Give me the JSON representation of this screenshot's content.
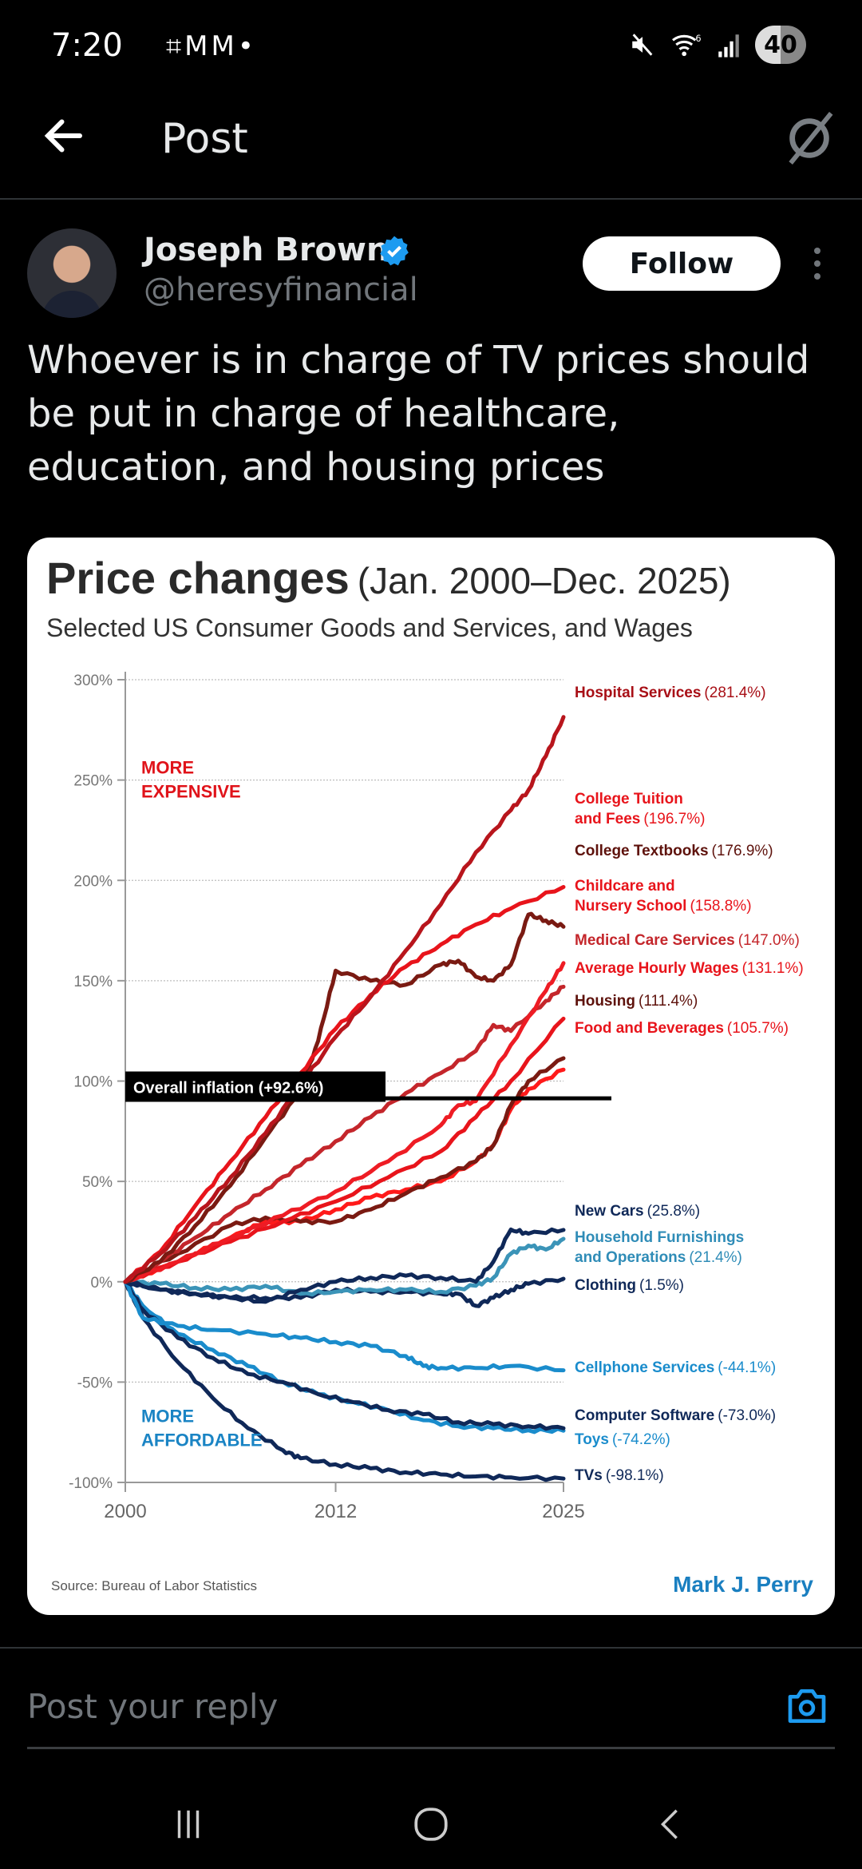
{
  "status_bar": {
    "time": "7:20",
    "left_icons": [
      "screenshot-icon",
      "gmail-icon",
      "gmail-icon",
      "dot-icon"
    ],
    "right_icons": [
      "mute-icon",
      "wifi-6-icon",
      "signal-icon"
    ],
    "battery": "40"
  },
  "header": {
    "title": "Post",
    "back_icon": "arrow-left-icon",
    "right_icon": "grok-icon"
  },
  "post": {
    "author_name": "Joseph Brown",
    "verified": true,
    "handle": "@heresyfinancial",
    "follow_label": "Follow",
    "text": "Whoever is in charge of TV prices should be put in charge of healthcare, education, and housing prices"
  },
  "chart_data": {
    "type": "line",
    "title": "Price changes",
    "title_range": "(Jan. 2000–Dec. 2025)",
    "subtitle": "Selected US Consumer Goods and Services, and Wages",
    "xlabel": "",
    "ylabel": "",
    "x_ticks": [
      "2000",
      "2012",
      "2025"
    ],
    "x_range": [
      2000,
      2025
    ],
    "y_ticks": [
      "300%",
      "250%",
      "200%",
      "150%",
      "100%",
      "50%",
      "0%",
      "-50%",
      "-100%"
    ],
    "y_range": [
      -100,
      300
    ],
    "grid": true,
    "annotations": {
      "more_expensive": [
        "MORE",
        "EXPENSIVE"
      ],
      "more_affordable": [
        "MORE",
        "AFFORDABLE"
      ],
      "overall_inflation": "Overall inflation (+92.6%)",
      "overall_inflation_value": 92.6
    },
    "source": "Source:  Bureau of Labor Statistics",
    "credit": "Mark J. Perry",
    "colors": {
      "red": "#e8141b",
      "dark_red": "#7a1a12",
      "mid_red": "#c4262b",
      "navy": "#0f2858",
      "light_blue": "#1a8ccc",
      "teal_blue": "#3b94b8"
    },
    "series": [
      {
        "name": "Hospital Services",
        "label_value": "(281.4%)",
        "final": 281.4,
        "color": "#b8151c",
        "label_color": "#a80f16",
        "x": [
          2000,
          2002,
          2004,
          2006,
          2008,
          2010,
          2012,
          2014,
          2016,
          2018,
          2020,
          2022,
          2023,
          2024,
          2025
        ],
        "y": [
          0,
          14,
          32,
          52,
          74,
          98,
          122,
          142,
          165,
          188,
          214,
          235,
          245,
          262,
          281.4
        ]
      },
      {
        "name": "College Tuition and Fees",
        "label_value": "(196.7%)",
        "final": 196.7,
        "color": "#e8141b",
        "label_color": "#e8141b",
        "x": [
          2000,
          2002,
          2004,
          2006,
          2008,
          2010,
          2012,
          2014,
          2016,
          2018,
          2020,
          2022,
          2025
        ],
        "y": [
          0,
          15,
          38,
          60,
          82,
          104,
          126,
          143,
          157,
          168,
          178,
          186,
          196.7
        ]
      },
      {
        "name": "College Textbooks",
        "label_value": "(176.9%)",
        "final": 176.9,
        "color": "#7a1a12",
        "label_color": "#5e120c",
        "x": [
          2000,
          2002,
          2004,
          2006,
          2008,
          2010,
          2011,
          2012,
          2014,
          2016,
          2018,
          2019,
          2020,
          2021,
          2022,
          2023,
          2024,
          2025
        ],
        "y": [
          0,
          10,
          28,
          48,
          72,
          95,
          120,
          155,
          150,
          148,
          158,
          160,
          152,
          150,
          158,
          183,
          180,
          176.9
        ]
      },
      {
        "name": "Childcare and Nursery School",
        "label_value": "(158.8%)",
        "final": 158.8,
        "color": "#ee1c24",
        "label_color": "#e8141b",
        "x": [
          2000,
          2003,
          2006,
          2009,
          2012,
          2015,
          2018,
          2019,
          2020,
          2022,
          2024,
          2025
        ],
        "y": [
          0,
          10,
          22,
          33,
          45,
          60,
          78,
          88,
          90,
          118,
          145,
          158.8
        ]
      },
      {
        "name": "Medical Care Services",
        "label_value": "(147.0%)",
        "final": 147.0,
        "color": "#c4262b",
        "label_color": "#c4262b",
        "x": [
          2000,
          2002,
          2004,
          2006,
          2008,
          2010,
          2012,
          2014,
          2016,
          2018,
          2020,
          2021,
          2022,
          2024,
          2025
        ],
        "y": [
          0,
          10,
          22,
          34,
          46,
          58,
          70,
          82,
          94,
          104,
          115,
          128,
          125,
          140,
          147.0
        ]
      },
      {
        "name": "Average Hourly Wages",
        "label_value": "(131.1%)",
        "final": 131.1,
        "color": "#e8141b",
        "label_color": "#e8141b",
        "x": [
          2000,
          2003,
          2006,
          2009,
          2012,
          2015,
          2018,
          2020,
          2022,
          2025
        ],
        "y": [
          0,
          10,
          20,
          30,
          40,
          52,
          65,
          82,
          100,
          131.1
        ]
      },
      {
        "name": "Housing",
        "label_value": "(111.4%)",
        "final": 111.4,
        "color": "#7a1a12",
        "label_color": "#5e120c",
        "x": [
          2000,
          2003,
          2006,
          2008,
          2010,
          2012,
          2014,
          2016,
          2018,
          2020,
          2021,
          2022,
          2023,
          2025
        ],
        "y": [
          0,
          14,
          28,
          32,
          30,
          30,
          36,
          44,
          52,
          60,
          68,
          88,
          100,
          111.4
        ]
      },
      {
        "name": "Food and Beverages",
        "label_value": "(105.7%)",
        "final": 105.7,
        "color": "#ff1a1a",
        "label_color": "#e8141b",
        "x": [
          2000,
          2003,
          2006,
          2008,
          2010,
          2012,
          2014,
          2016,
          2018,
          2020,
          2021,
          2022,
          2023,
          2025
        ],
        "y": [
          0,
          10,
          22,
          30,
          30,
          36,
          42,
          46,
          50,
          60,
          68,
          86,
          96,
          105.7
        ]
      },
      {
        "name": "New Cars",
        "label_value": "(25.8%)",
        "final": 25.8,
        "color": "#0f2858",
        "label_color": "#0f2858",
        "x": [
          2000,
          2002,
          2004,
          2006,
          2008,
          2010,
          2012,
          2014,
          2016,
          2018,
          2020,
          2021,
          2022,
          2023,
          2025
        ],
        "y": [
          0,
          -4,
          -6,
          -8,
          -10,
          -4,
          0,
          2,
          3,
          2,
          0,
          10,
          26,
          24,
          25.8
        ]
      },
      {
        "name": "Household Furnishings and Operations",
        "label_value": "(21.4%)",
        "final": 21.4,
        "color": "#3b94b8",
        "label_color": "#2f8cb7",
        "x": [
          2000,
          2002,
          2004,
          2006,
          2008,
          2010,
          2012,
          2014,
          2016,
          2018,
          2020,
          2021,
          2022,
          2023,
          2024,
          2025
        ],
        "y": [
          0,
          -1,
          -3,
          -4,
          -2,
          -6,
          -5,
          -4,
          -4,
          -5,
          -2,
          2,
          14,
          18,
          16,
          21.4
        ]
      },
      {
        "name": "Clothing",
        "label_value": "(1.5%)",
        "final": 1.5,
        "color": "#0f2858",
        "label_color": "#0f2858",
        "x": [
          2000,
          2002,
          2004,
          2006,
          2008,
          2010,
          2012,
          2014,
          2016,
          2018,
          2019,
          2020,
          2021,
          2022,
          2023,
          2025
        ],
        "y": [
          0,
          -4,
          -6,
          -8,
          -8,
          -8,
          -4,
          -5,
          -5,
          -6,
          -6,
          -12,
          -8,
          -4,
          -1,
          1.5
        ]
      },
      {
        "name": "Cellphone Services",
        "label_value": "(-44.1%)",
        "final": -44.1,
        "color": "#1a8ccc",
        "label_color": "#1a8ccc",
        "x": [
          2000,
          2001,
          2003,
          2005,
          2008,
          2010,
          2012,
          2014,
          2016,
          2017,
          2018,
          2020,
          2022,
          2025
        ],
        "y": [
          0,
          -18,
          -22,
          -24,
          -26,
          -28,
          -30,
          -32,
          -37,
          -42,
          -43,
          -43,
          -42,
          -44.1
        ]
      },
      {
        "name": "Computer Software",
        "label_value": "(-73.0%)",
        "final": -73.0,
        "color": "#0f2858",
        "label_color": "#0f2858",
        "x": [
          2000,
          2001,
          2003,
          2005,
          2007,
          2009,
          2011,
          2013,
          2015,
          2017,
          2019,
          2021,
          2023,
          2025
        ],
        "y": [
          0,
          -14,
          -28,
          -38,
          -46,
          -50,
          -56,
          -60,
          -64,
          -66,
          -70,
          -71,
          -72,
          -73.0
        ]
      },
      {
        "name": "Toys",
        "label_value": "(-74.2%)",
        "final": -74.2,
        "color": "#1a8ccc",
        "label_color": "#1a8ccc",
        "x": [
          2000,
          2001,
          2003,
          2005,
          2007,
          2009,
          2011,
          2013,
          2015,
          2017,
          2019,
          2021,
          2023,
          2025
        ],
        "y": [
          0,
          -12,
          -26,
          -34,
          -42,
          -50,
          -56,
          -60,
          -64,
          -69,
          -72,
          -73,
          -74,
          -74.2
        ]
      },
      {
        "name": "TVs",
        "label_value": "(-98.1%)",
        "final": -98.1,
        "color": "#0f2858",
        "label_color": "#0f2858",
        "x": [
          2000,
          2001,
          2003,
          2005,
          2007,
          2009,
          2010,
          2012,
          2014,
          2016,
          2018,
          2020,
          2022,
          2025
        ],
        "y": [
          0,
          -18,
          -40,
          -58,
          -73,
          -84,
          -88,
          -91,
          -93,
          -95,
          -96,
          -97,
          -97.5,
          -98.1
        ]
      }
    ]
  },
  "reply": {
    "placeholder": "Post your reply",
    "camera_icon": "camera-icon"
  },
  "nav_bar": {
    "buttons": [
      "recent-apps-icon",
      "home-icon",
      "back-icon"
    ]
  }
}
